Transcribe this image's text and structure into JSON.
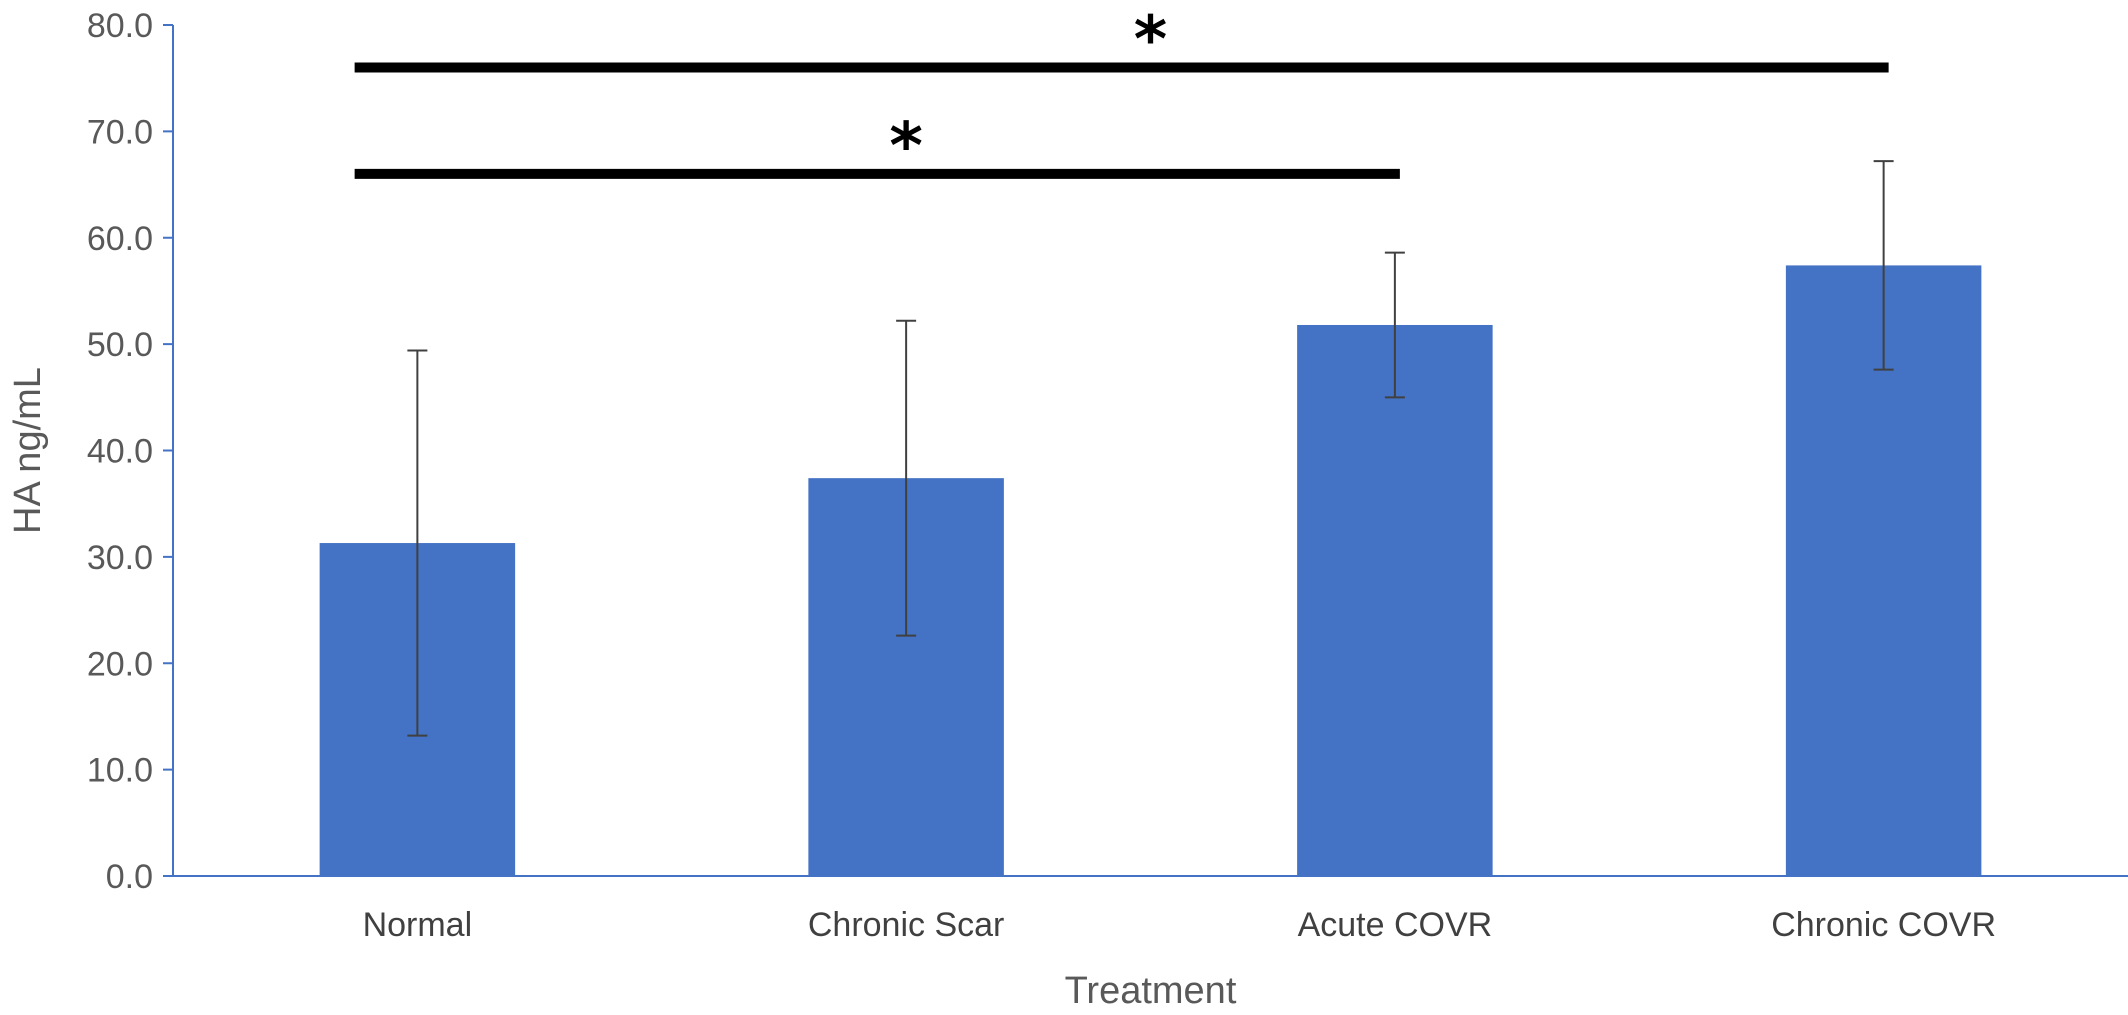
{
  "chart_data": {
    "type": "bar",
    "xlabel": "Treatment",
    "ylabel": "HA ng/mL",
    "ylim": [
      0,
      80
    ],
    "yticks": [
      "0.0",
      "10.0",
      "20.0",
      "30.0",
      "40.0",
      "50.0",
      "60.0",
      "70.0",
      "80.0"
    ],
    "categories": [
      "Normal",
      "Chronic Scar",
      "Acute COVR",
      "Chronic COVR"
    ],
    "values": [
      31.3,
      37.4,
      51.8,
      57.4
    ],
    "error": [
      18.1,
      14.8,
      6.8,
      9.8
    ],
    "bar_color": "#4472C4",
    "grid": false,
    "significance": [
      {
        "from": "Normal",
        "to": "Acute COVR",
        "level": 66,
        "label": "*"
      },
      {
        "from": "Normal",
        "to": "Chronic COVR",
        "level": 76,
        "label": "*"
      }
    ]
  }
}
